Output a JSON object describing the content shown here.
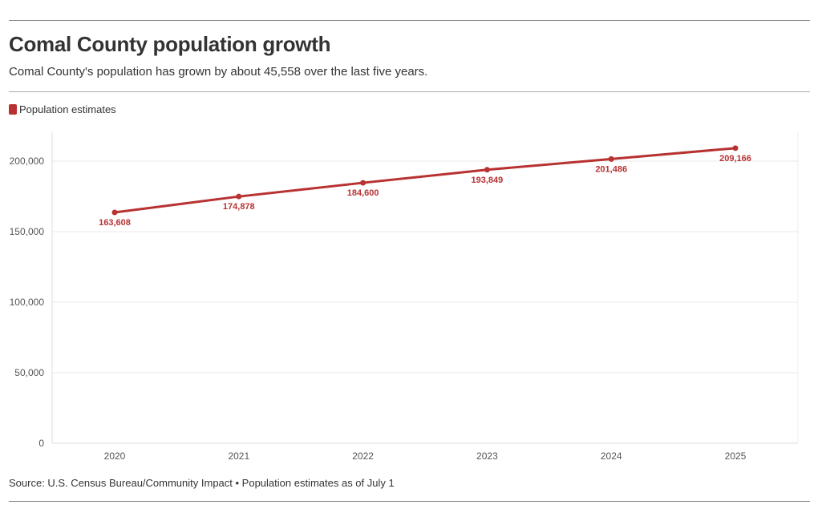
{
  "header": {
    "title": "Comal County population growth",
    "subtitle": "Comal County's population has grown by about 45,558 over the last five years."
  },
  "legend": {
    "label": "Population estimates",
    "color": "#b83232"
  },
  "footer": {
    "source": "Source: U.S. Census Bureau/Community Impact • Population estimates as of July 1"
  },
  "chart_data": {
    "type": "line",
    "title": "Comal County population growth",
    "xlabel": "",
    "ylabel": "",
    "categories": [
      "2020",
      "2021",
      "2022",
      "2023",
      "2024",
      "2025"
    ],
    "series": [
      {
        "name": "Population estimates",
        "color": "#b83232",
        "values": [
          163608,
          174878,
          184600,
          193849,
          201486,
          209166
        ],
        "labels": [
          "163,608",
          "174,878",
          "184,600",
          "193,849",
          "201,486",
          "209,166"
        ]
      }
    ],
    "ylim": [
      0,
      221000
    ],
    "yticks": [
      0,
      50000,
      100000,
      150000,
      200000
    ],
    "ytick_labels": [
      "0",
      "50,000",
      "100,000",
      "150,000",
      "200,000"
    ],
    "grid": true
  }
}
